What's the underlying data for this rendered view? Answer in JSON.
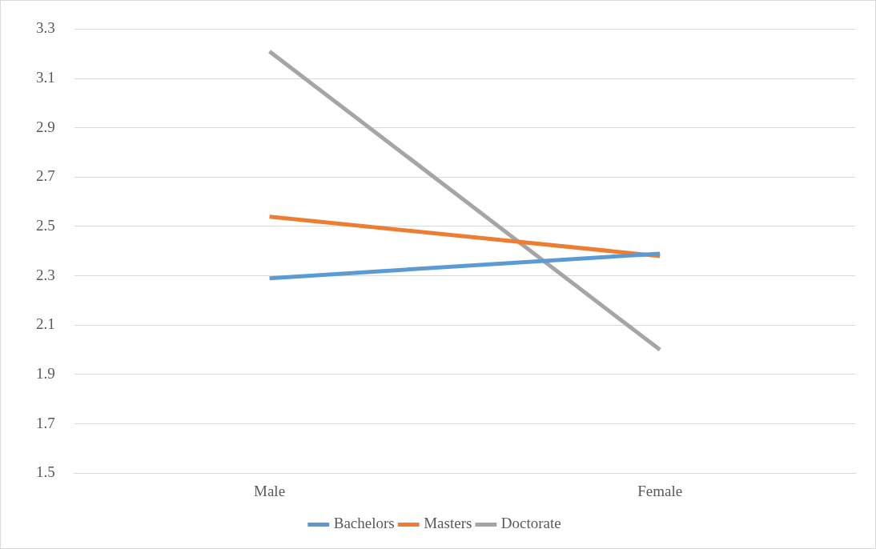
{
  "chart_data": {
    "type": "line",
    "categories": [
      "Male",
      "Female"
    ],
    "series": [
      {
        "name": "Bachelors",
        "color": "#5b9bd5",
        "values": [
          2.29,
          2.39
        ]
      },
      {
        "name": "Masters",
        "color": "#ed7d31",
        "values": [
          2.54,
          2.38
        ]
      },
      {
        "name": "Doctorate",
        "color": "#a5a5a5",
        "values": [
          3.21,
          2.0
        ]
      }
    ],
    "ylim": [
      1.5,
      3.3
    ],
    "yticks": [
      1.5,
      1.7,
      1.9,
      2.1,
      2.3,
      2.5,
      2.7,
      2.9,
      3.1,
      3.3
    ],
    "grid": "y",
    "legend": "bottom",
    "marker": "none",
    "line_style": "solid"
  }
}
